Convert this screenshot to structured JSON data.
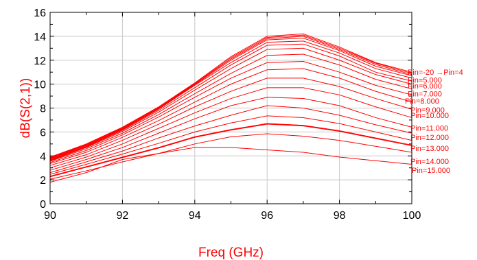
{
  "chart_data": {
    "type": "line",
    "xlabel": "Freq (GHz)",
    "ylabel": "dB(S(2,1))",
    "xlim": [
      90,
      100
    ],
    "ylim": [
      0,
      16
    ],
    "x_ticks": [
      "90",
      "92",
      "94",
      "96",
      "98",
      "100"
    ],
    "y_ticks": [
      "0",
      "2",
      "4",
      "6",
      "8",
      "10",
      "12",
      "14",
      "16"
    ],
    "grid": true,
    "line_color": "#ff0000",
    "x": [
      90,
      91,
      92,
      93,
      94,
      95,
      96,
      97,
      98,
      99,
      100
    ],
    "series": [
      {
        "name": "",
        "values": [
          3.9,
          5.0,
          6.4,
          8.1,
          10.1,
          12.3,
          14.0,
          14.2,
          13.1,
          11.8,
          11.0
        ]
      },
      {
        "name": "",
        "values": [
          3.85,
          4.95,
          6.35,
          8.05,
          10.05,
          12.2,
          13.9,
          14.1,
          13.0,
          11.75,
          10.9
        ]
      },
      {
        "name": "",
        "values": [
          3.8,
          4.9,
          6.3,
          8.0,
          10.0,
          12.1,
          13.8,
          14.0,
          12.9,
          11.65,
          10.8
        ]
      },
      {
        "name": "",
        "values": [
          3.75,
          4.85,
          6.25,
          7.95,
          9.95,
          12.0,
          13.7,
          13.85,
          12.8,
          11.5,
          10.7
        ]
      },
      {
        "name": "",
        "values": [
          3.7,
          4.8,
          6.2,
          7.9,
          9.9,
          11.8,
          13.5,
          13.6,
          12.6,
          11.3,
          10.5
        ]
      },
      {
        "name": "",
        "values": [
          3.65,
          4.75,
          6.15,
          7.8,
          9.7,
          11.6,
          13.25,
          13.35,
          12.35,
          11.0,
          10.25
        ]
      },
      {
        "name": "",
        "values": [
          3.6,
          4.7,
          6.05,
          7.65,
          9.5,
          11.3,
          12.9,
          13.0,
          12.0,
          10.8,
          10.0
        ]
      },
      {
        "name": "",
        "values": [
          3.55,
          4.6,
          5.9,
          7.45,
          9.2,
          10.9,
          12.4,
          12.5,
          11.6,
          10.4,
          9.6
        ]
      },
      {
        "name": "",
        "values": [
          3.45,
          4.45,
          5.75,
          7.25,
          8.9,
          10.5,
          11.8,
          11.9,
          11.0,
          9.9,
          9.1
        ]
      },
      {
        "name": "",
        "values": [
          3.35,
          4.3,
          5.55,
          6.95,
          8.5,
          10.0,
          11.2,
          11.3,
          10.5,
          9.4,
          8.5
        ]
      },
      {
        "name": "",
        "values": [
          3.2,
          4.1,
          5.3,
          6.65,
          8.1,
          9.4,
          10.5,
          10.5,
          9.8,
          8.8,
          7.9
        ]
      },
      {
        "name": "",
        "values": [
          3.0,
          3.9,
          5.0,
          6.3,
          7.6,
          8.8,
          9.7,
          9.7,
          9.1,
          8.1,
          7.2
        ]
      },
      {
        "name": "",
        "values": [
          2.8,
          3.7,
          4.7,
          5.9,
          7.1,
          8.2,
          8.9,
          8.8,
          8.2,
          7.2,
          6.4
        ]
      },
      {
        "name": "",
        "values": [
          2.6,
          3.5,
          4.4,
          5.5,
          6.5,
          7.4,
          8.2,
          8.0,
          7.4,
          6.6,
          5.9
        ]
      },
      {
        "name": "",
        "values": [
          2.45,
          3.3,
          4.15,
          5.05,
          6.0,
          6.75,
          7.35,
          7.2,
          6.7,
          6.0,
          5.3
        ]
      },
      {
        "name": "",
        "values": [
          2.3,
          3.1,
          3.9,
          4.7,
          5.6,
          6.2,
          6.7,
          6.55,
          6.1,
          5.5,
          4.9
        ]
      },
      {
        "name": "",
        "values": [
          2.3,
          3.1,
          3.9,
          4.7,
          5.6,
          6.2,
          6.7,
          6.55,
          6.1,
          5.5,
          4.9
        ]
      },
      {
        "name": "",
        "values": [
          2.25,
          3.05,
          3.85,
          4.65,
          5.55,
          6.15,
          6.65,
          6.5,
          6.05,
          5.45,
          4.85
        ]
      },
      {
        "name": "",
        "values": [
          2.05,
          2.75,
          3.5,
          4.2,
          5.0,
          5.6,
          5.85,
          5.65,
          5.3,
          4.8,
          4.3
        ]
      },
      {
        "name": "",
        "values": [
          1.8,
          2.6,
          3.7,
          4.2,
          4.7,
          4.7,
          4.5,
          4.3,
          3.9,
          3.6,
          3.3
        ]
      }
    ],
    "annotations": [
      {
        "text": "Pin=-20 →Pin=4",
        "y": 11.0
      },
      {
        "text": "Pin=5.000",
        "y": 10.35
      },
      {
        "text": "Pin=6.000",
        "y": 9.85
      },
      {
        "text": "Pin=7.000",
        "y": 9.2
      },
      {
        "text": "Pin=8.000",
        "y": 8.6
      },
      {
        "text": "Pin=9.000",
        "y": 7.85
      },
      {
        "text": "Pin=10.000",
        "y": 7.4
      },
      {
        "text": "Pin=11.000",
        "y": 6.35
      },
      {
        "text": "Pin=12.000",
        "y": 5.55
      },
      {
        "text": "Pin=13.000",
        "y": 4.65
      },
      {
        "text": "Pin=14.000",
        "y": 3.55
      },
      {
        "text": "Pin=15.000",
        "y": 2.8
      }
    ]
  }
}
